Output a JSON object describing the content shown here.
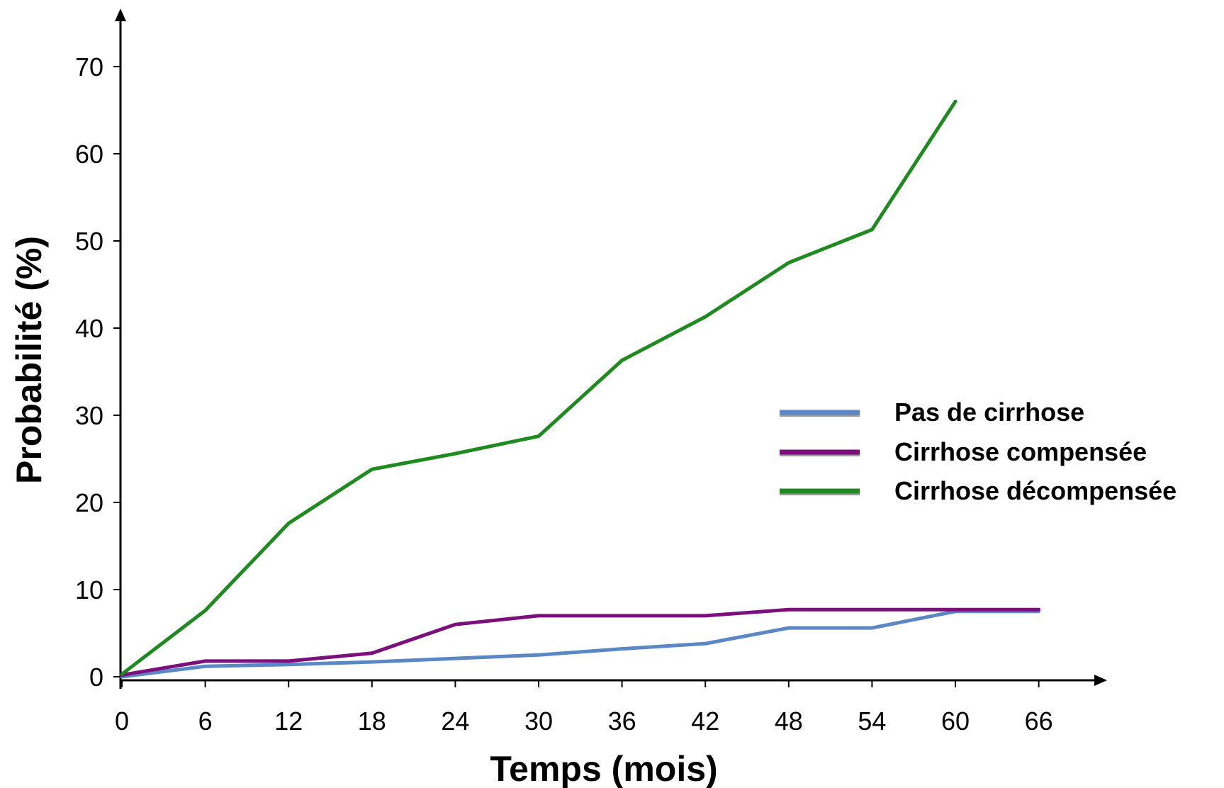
{
  "chart_data": {
    "type": "line",
    "title": "",
    "xlabel": "Temps (mois)",
    "ylabel": "Probabilité (%)",
    "xlim": [
      0,
      70
    ],
    "ylim": [
      0,
      75
    ],
    "x_ticks": [
      0,
      6,
      12,
      18,
      24,
      30,
      36,
      42,
      48,
      54,
      60,
      66
    ],
    "y_ticks": [
      0,
      10,
      20,
      30,
      40,
      50,
      60,
      70
    ],
    "grid": false,
    "legend_position": "right",
    "series": [
      {
        "name": "Pas de cirrhose",
        "color": "#5b87c5",
        "x": [
          0,
          6,
          12,
          18,
          24,
          30,
          36,
          42,
          48,
          54,
          60,
          66
        ],
        "y": [
          0,
          1.2,
          1.4,
          1.7,
          2.1,
          2.5,
          3.2,
          3.8,
          5.6,
          5.6,
          7.5,
          7.5
        ]
      },
      {
        "name": "Cirrhose compensée",
        "color": "#7b0f7b",
        "x": [
          0,
          6,
          12,
          18,
          24,
          30,
          36,
          42,
          48,
          54,
          60,
          66
        ],
        "y": [
          0.2,
          1.8,
          1.8,
          2.7,
          6.0,
          7.0,
          7.0,
          7.0,
          7.7,
          7.7,
          7.7,
          7.7
        ]
      },
      {
        "name": "Cirrhose décompensée",
        "color": "#1f8a1f",
        "x": [
          0,
          6,
          12,
          18,
          24,
          30,
          36,
          42,
          48,
          54,
          60
        ],
        "y": [
          0.3,
          7.6,
          17.6,
          23.8,
          25.6,
          27.6,
          36.3,
          41.3,
          47.5,
          51.3,
          66.0
        ]
      }
    ]
  }
}
